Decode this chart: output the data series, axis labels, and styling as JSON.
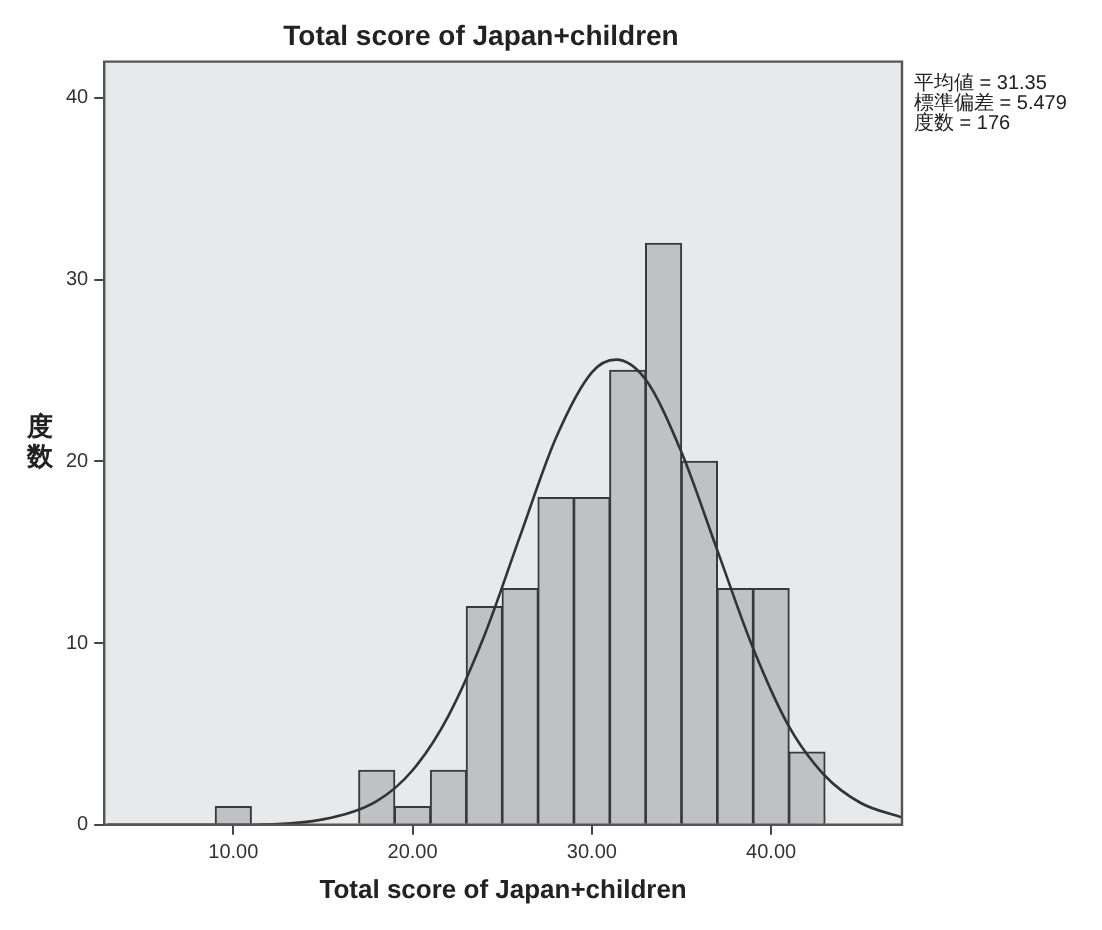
{
  "chart_data": {
    "type": "histogram",
    "title": "Total score of Japan+children",
    "xlabel": "Total score of Japan+children",
    "ylabel": "度数",
    "bins": [
      9,
      11,
      13,
      15,
      17,
      19,
      21,
      23,
      25,
      27,
      29,
      31,
      33,
      35,
      37,
      39,
      41,
      43
    ],
    "values": [
      1,
      0,
      0,
      0,
      3,
      1,
      3,
      12,
      13,
      18,
      18,
      25,
      32,
      20,
      13,
      13,
      4
    ],
    "color": "#c0c1c5",
    "series": [
      {
        "type": "line",
        "color": "#333333",
        "x": [
          3,
          10,
          15,
          18,
          20,
          22,
          24,
          26,
          28,
          30,
          31.35,
          33,
          35,
          37,
          39,
          41,
          43,
          45,
          47.3
        ],
        "values": [
          0,
          0,
          0.3,
          1.3,
          3.0,
          6.0,
          10.4,
          15.9,
          21.3,
          24.9,
          25.6,
          24.5,
          20.5,
          15.1,
          9.7,
          5.4,
          2.7,
          1.2,
          0.4
        ]
      }
    ],
    "xlim": [
      2.8,
      47.3
    ],
    "ylim": [
      0,
      42
    ],
    "xticks": [
      {
        "value": 10,
        "label": "10.00"
      },
      {
        "value": 20,
        "label": "20.00"
      },
      {
        "value": 30,
        "label": "30.00"
      },
      {
        "value": 40,
        "label": "40.00"
      }
    ],
    "yticks": [
      0,
      10,
      20,
      30,
      40
    ],
    "grid": false,
    "legend": false,
    "marker": "none",
    "annotations": [
      "平均値 = 31.35",
      "標準偏差 = 5.479",
      "度数 = 176"
    ]
  }
}
